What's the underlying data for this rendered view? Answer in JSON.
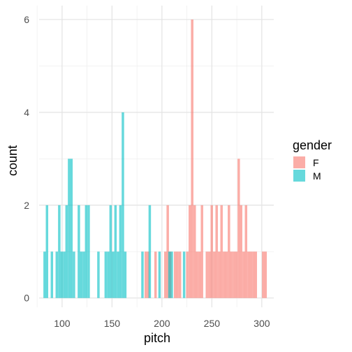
{
  "chart_data": {
    "type": "bar",
    "subtype": "overlaid-histogram",
    "xlabel": "pitch",
    "ylabel": "count",
    "xlim": [
      77,
      312
    ],
    "ylim": [
      -0.2,
      6.3
    ],
    "x_ticks": [
      100,
      150,
      200,
      250,
      300
    ],
    "y_ticks": [
      0,
      2,
      4,
      6
    ],
    "bin_width": 2.45,
    "bar_opacity": 0.6,
    "grid": true,
    "legend": {
      "title": "gender",
      "position": "right"
    },
    "series": [
      {
        "name": "F",
        "color": "#F8766D",
        "bins": [
          {
            "x": 183.8,
            "count": 1
          },
          {
            "x": 186.2,
            "count": 1
          },
          {
            "x": 193.6,
            "count": 1
          },
          {
            "x": 203.4,
            "count": 1
          },
          {
            "x": 205.8,
            "count": 2
          },
          {
            "x": 208.3,
            "count": 1
          },
          {
            "x": 213.2,
            "count": 1
          },
          {
            "x": 215.6,
            "count": 1
          },
          {
            "x": 218.1,
            "count": 1
          },
          {
            "x": 225.4,
            "count": 1
          },
          {
            "x": 227.9,
            "count": 2
          },
          {
            "x": 230.3,
            "count": 6
          },
          {
            "x": 232.8,
            "count": 2
          },
          {
            "x": 235.2,
            "count": 1
          },
          {
            "x": 237.7,
            "count": 1
          },
          {
            "x": 240.1,
            "count": 2
          },
          {
            "x": 245.0,
            "count": 1
          },
          {
            "x": 247.5,
            "count": 1
          },
          {
            "x": 249.9,
            "count": 2
          },
          {
            "x": 252.4,
            "count": 1
          },
          {
            "x": 254.8,
            "count": 2
          },
          {
            "x": 257.3,
            "count": 1
          },
          {
            "x": 259.7,
            "count": 2
          },
          {
            "x": 262.2,
            "count": 1
          },
          {
            "x": 264.6,
            "count": 1
          },
          {
            "x": 267.1,
            "count": 2
          },
          {
            "x": 269.5,
            "count": 1
          },
          {
            "x": 272.0,
            "count": 1
          },
          {
            "x": 274.4,
            "count": 1
          },
          {
            "x": 276.9,
            "count": 3
          },
          {
            "x": 279.3,
            "count": 2
          },
          {
            "x": 281.8,
            "count": 1
          },
          {
            "x": 284.2,
            "count": 2
          },
          {
            "x": 286.7,
            "count": 1
          },
          {
            "x": 289.1,
            "count": 1
          },
          {
            "x": 291.6,
            "count": 1
          },
          {
            "x": 294.0,
            "count": 1
          },
          {
            "x": 301.4,
            "count": 1
          },
          {
            "x": 303.8,
            "count": 1
          }
        ]
      },
      {
        "name": "M",
        "color": "#00BFC4",
        "bins": [
          {
            "x": 82.5,
            "count": 1
          },
          {
            "x": 84.9,
            "count": 2
          },
          {
            "x": 89.8,
            "count": 1
          },
          {
            "x": 94.7,
            "count": 1
          },
          {
            "x": 97.2,
            "count": 2
          },
          {
            "x": 99.6,
            "count": 1
          },
          {
            "x": 102.1,
            "count": 1
          },
          {
            "x": 104.5,
            "count": 2
          },
          {
            "x": 107.0,
            "count": 3
          },
          {
            "x": 109.4,
            "count": 3
          },
          {
            "x": 111.9,
            "count": 1
          },
          {
            "x": 116.8,
            "count": 2
          },
          {
            "x": 119.2,
            "count": 1
          },
          {
            "x": 121.7,
            "count": 1
          },
          {
            "x": 124.1,
            "count": 2
          },
          {
            "x": 126.6,
            "count": 2
          },
          {
            "x": 136.4,
            "count": 1
          },
          {
            "x": 143.7,
            "count": 1
          },
          {
            "x": 146.2,
            "count": 1
          },
          {
            "x": 148.6,
            "count": 2
          },
          {
            "x": 151.1,
            "count": 1
          },
          {
            "x": 153.5,
            "count": 2
          },
          {
            "x": 156.0,
            "count": 1
          },
          {
            "x": 158.4,
            "count": 2
          },
          {
            "x": 160.9,
            "count": 4
          },
          {
            "x": 163.3,
            "count": 1
          },
          {
            "x": 180.5,
            "count": 1
          },
          {
            "x": 187.8,
            "count": 2
          },
          {
            "x": 197.6,
            "count": 1
          },
          {
            "x": 207.5,
            "count": 1
          },
          {
            "x": 209.9,
            "count": 1
          },
          {
            "x": 222.2,
            "count": 1
          }
        ]
      }
    ]
  }
}
